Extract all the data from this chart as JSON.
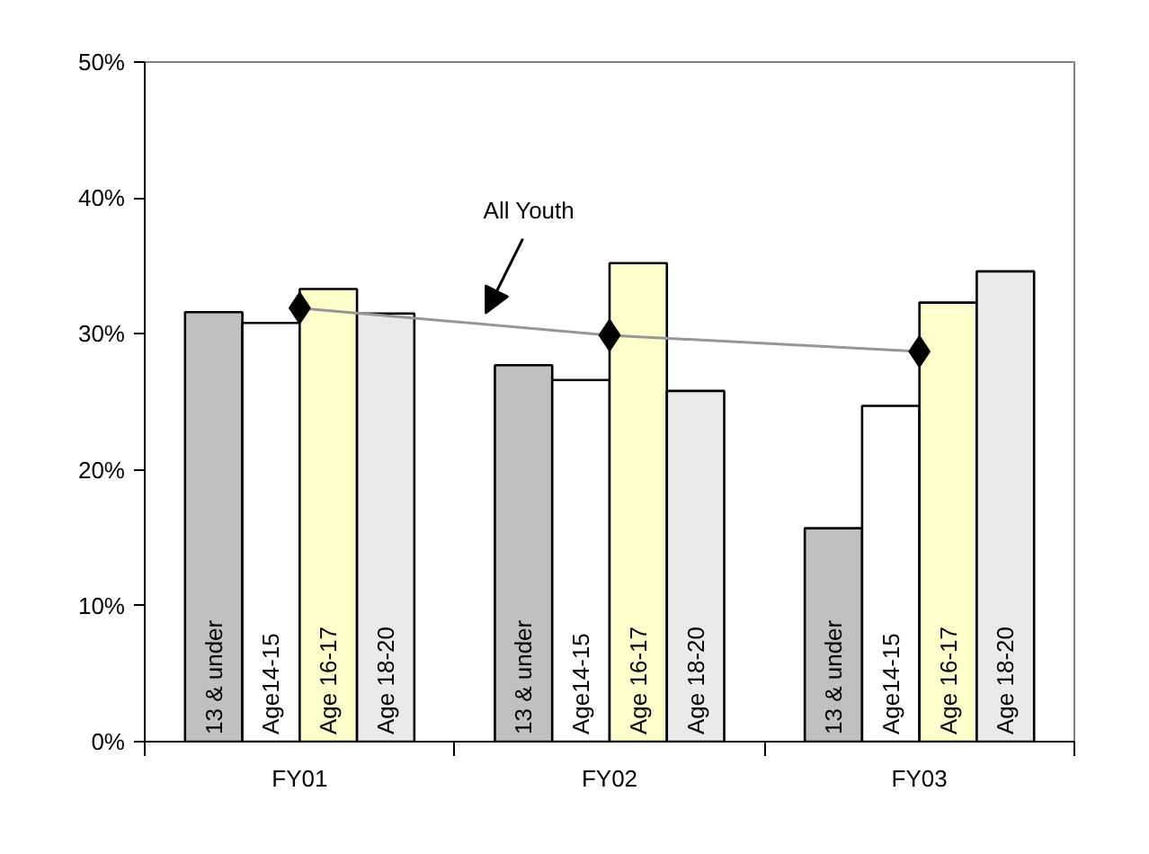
{
  "chart_data": {
    "type": "bar",
    "categories": [
      "FY01",
      "FY02",
      "FY03"
    ],
    "series": [
      {
        "name": "13 & under",
        "color": "#c0c0c0",
        "values": [
          31.6,
          27.7,
          15.7
        ]
      },
      {
        "name": "Age14-15",
        "color": "#ffffff",
        "values": [
          30.8,
          26.6,
          24.7
        ]
      },
      {
        "name": "Age 16-17",
        "color": "#ffffcc",
        "values": [
          33.3,
          35.2,
          32.3
        ]
      },
      {
        "name": "Age 18-20",
        "color": "#eaeaea",
        "values": [
          31.5,
          25.8,
          34.6
        ]
      },
      {
        "name": "All Youth",
        "type": "line",
        "color": "#969696",
        "marker": "diamond",
        "values": [
          31.9,
          29.9,
          28.7
        ]
      }
    ],
    "ylim": [
      0,
      50
    ],
    "yticks": [
      {
        "value": 0,
        "label": "0%"
      },
      {
        "value": 10,
        "label": "10%"
      },
      {
        "value": 20,
        "label": "20%"
      },
      {
        "value": 30,
        "label": "30%"
      },
      {
        "value": 40,
        "label": "40%"
      },
      {
        "value": 50,
        "label": "50%"
      }
    ],
    "grid": false
  }
}
